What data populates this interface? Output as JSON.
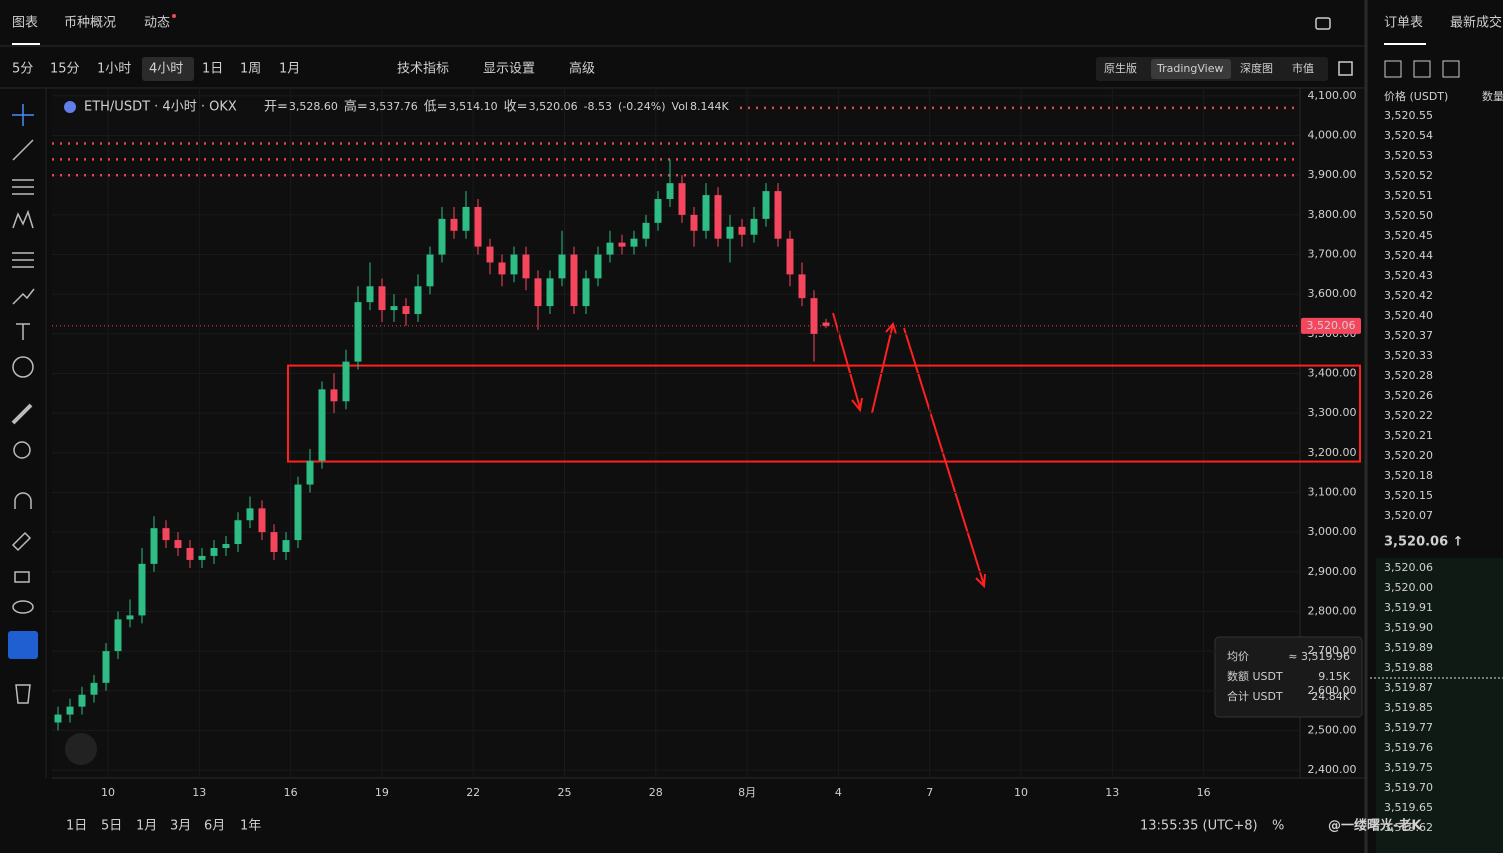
{
  "header": {
    "tabs": [
      "图表",
      "币种概况",
      "动态"
    ],
    "intervals": [
      "5分",
      "15分",
      "1小时",
      "4小时",
      "1日",
      "1周",
      "1月"
    ],
    "tools": [
      "技术指标",
      "显示设置",
      "高级"
    ],
    "views": [
      "原生版",
      "TradingView",
      "深度图",
      "市值"
    ]
  },
  "legend": {
    "symbol": "ETH/USDT · 4小时 · OKX",
    "items": [
      [
        "开=",
        "3,528.60"
      ],
      [
        "高=",
        "3,537.76"
      ],
      [
        "低=",
        "3,514.10"
      ],
      [
        "收=",
        "3,520.06"
      ]
    ],
    "change": "-8.53",
    "change_pct": "(-0.24%)",
    "vol_label": "Vol",
    "vol": "8.144K"
  },
  "chart_data": {
    "type": "candlestick",
    "x_labels": [
      "10",
      "13",
      "16",
      "19",
      "22",
      "25",
      "28",
      "8月",
      "4",
      "7",
      "10",
      "13",
      "16"
    ],
    "open": [
      2520,
      2540,
      2560,
      2590,
      2620,
      2700,
      2780,
      2790,
      2920,
      3010,
      2980,
      2960,
      2930,
      2940,
      2960,
      2970,
      3030,
      3060,
      3000,
      2950,
      2980,
      3120,
      3180,
      3360,
      3330,
      3430,
      3580,
      3620,
      3560,
      3570,
      3550,
      3620,
      3700,
      3790,
      3760,
      3820,
      3720,
      3680,
      3650,
      3700,
      3640,
      3570,
      3640,
      3700,
      3570,
      3640,
      3700,
      3730,
      3720,
      3740,
      3780,
      3840,
      3880,
      3800,
      3760,
      3850,
      3740,
      3770,
      3750,
      3790,
      3860,
      3740,
      3650,
      3590,
      3528.6
    ],
    "high": [
      2560,
      2580,
      2610,
      2640,
      2720,
      2800,
      2830,
      2960,
      3040,
      3030,
      3000,
      2980,
      2960,
      2980,
      2990,
      3050,
      3090,
      3080,
      3020,
      3000,
      3140,
      3210,
      3380,
      3400,
      3460,
      3620,
      3680,
      3640,
      3600,
      3590,
      3650,
      3720,
      3820,
      3820,
      3860,
      3840,
      3740,
      3700,
      3720,
      3720,
      3660,
      3660,
      3760,
      3720,
      3660,
      3720,
      3760,
      3750,
      3760,
      3800,
      3860,
      3940,
      3900,
      3820,
      3880,
      3870,
      3800,
      3790,
      3820,
      3880,
      3880,
      3760,
      3680,
      3610,
      3537.76
    ],
    "low": [
      2500,
      2520,
      2540,
      2570,
      2600,
      2680,
      2760,
      2770,
      2900,
      2960,
      2940,
      2910,
      2910,
      2920,
      2940,
      2950,
      3010,
      2980,
      2930,
      2930,
      2960,
      3100,
      3160,
      3300,
      3310,
      3410,
      3560,
      3530,
      3530,
      3520,
      3530,
      3600,
      3680,
      3740,
      3740,
      3700,
      3650,
      3620,
      3630,
      3610,
      3510,
      3550,
      3620,
      3550,
      3550,
      3620,
      3680,
      3700,
      3700,
      3720,
      3760,
      3820,
      3780,
      3720,
      3740,
      3720,
      3680,
      3720,
      3730,
      3770,
      3720,
      3620,
      3570,
      3430,
      3514.1
    ],
    "close": [
      2540,
      2560,
      2590,
      2620,
      2700,
      2780,
      2790,
      2920,
      3010,
      2980,
      2960,
      2930,
      2940,
      2960,
      2970,
      3030,
      3060,
      3000,
      2950,
      2980,
      3120,
      3180,
      3360,
      3330,
      3430,
      3580,
      3620,
      3560,
      3570,
      3550,
      3620,
      3700,
      3790,
      3760,
      3820,
      3720,
      3680,
      3650,
      3700,
      3640,
      3570,
      3640,
      3700,
      3570,
      3640,
      3700,
      3730,
      3720,
      3740,
      3780,
      3840,
      3880,
      3800,
      3760,
      3850,
      3740,
      3770,
      3750,
      3790,
      3860,
      3740,
      3650,
      3590,
      3500,
      3520.06
    ],
    "up_color": "#2ebd85",
    "down_color": "#f6465d",
    "ylim": [
      2380,
      4120
    ],
    "yticks": [
      {
        "value": 2400,
        "label": "2,400.00"
      },
      {
        "value": 2500,
        "label": "2,500.00"
      },
      {
        "value": 2600,
        "label": "2,600.00"
      },
      {
        "value": 2700,
        "label": "2,700.00"
      },
      {
        "value": 2800,
        "label": "2,800.00"
      },
      {
        "value": 2900,
        "label": "2,900.00"
      },
      {
        "value": 3000,
        "label": "3,000.00"
      },
      {
        "value": 3100,
        "label": "3,100.00"
      },
      {
        "value": 3200,
        "label": "3,200.00"
      },
      {
        "value": 3300,
        "label": "3,300.00"
      },
      {
        "value": 3400,
        "label": "3,400.00"
      },
      {
        "value": 3500,
        "label": "3,500.00"
      },
      {
        "value": 3600,
        "label": "3,600.00"
      },
      {
        "value": 3700,
        "label": "3,700.00"
      },
      {
        "value": 3800,
        "label": "3,800.00"
      },
      {
        "value": 3900,
        "label": "3,900.00"
      },
      {
        "value": 4000,
        "label": "4,000.00"
      },
      {
        "value": 4100,
        "label": "4,100.00"
      }
    ],
    "grid": true,
    "last_price": {
      "value": 3520.06,
      "label": "3,520.06"
    },
    "ref_lines": [
      4070,
      3980,
      3940,
      3900
    ],
    "zone": [
      3420,
      3178
    ]
  },
  "tooltip": {
    "rows": [
      [
        "均价",
        "≈ 3,519.96"
      ],
      [
        "数额 USDT",
        "9.15K"
      ],
      [
        "合计 USDT",
        "24.84K"
      ]
    ]
  },
  "order_book": {
    "tabs": [
      "订单表",
      "最新成交"
    ],
    "columns": [
      "价格 (USDT)",
      "数量"
    ],
    "asks": [
      "3,520.55",
      "3,520.54",
      "3,520.53",
      "3,520.52",
      "3,520.51",
      "3,520.50",
      "3,520.45",
      "3,520.44",
      "3,520.43",
      "3,520.42",
      "3,520.40",
      "3,520.37",
      "3,520.33",
      "3,520.28",
      "3,520.26",
      "3,520.22",
      "3,520.21",
      "3,520.20",
      "3,520.18",
      "3,520.15",
      "3,520.07"
    ],
    "last": "3,520.06 ↑",
    "bids": [
      "3,520.06",
      "3,520.00",
      "3,519.91",
      "3,519.90",
      "3,519.89",
      "3,519.88",
      "3,519.87",
      "3,519.85",
      "3,519.77",
      "3,519.76",
      "3,519.75",
      "3,519.70",
      "3,519.65",
      "3,519.62"
    ]
  },
  "footer": {
    "ranges": [
      "1日",
      "5日",
      "1月",
      "3月",
      "6月",
      "1年"
    ],
    "time": "13:55:35 (UTC+8)",
    "pct": "%",
    "watermark": "@一缕曙光-老K"
  }
}
